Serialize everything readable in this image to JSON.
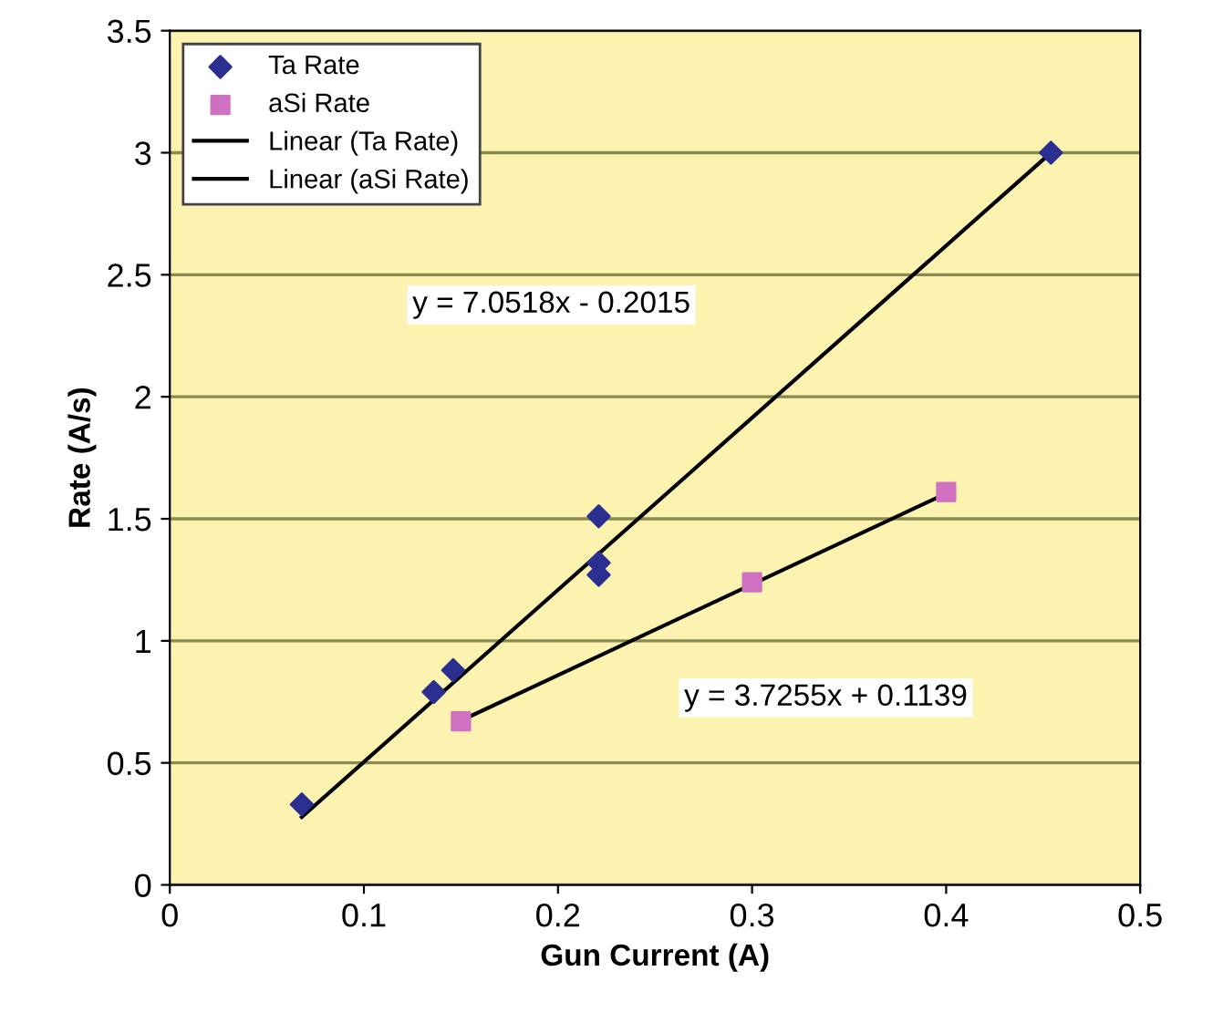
{
  "chart_data": {
    "type": "scatter",
    "xlabel": "Gun Current (A)",
    "ylabel": "Rate (A/s)",
    "xlim": [
      0,
      0.5
    ],
    "xticks": [
      0,
      0.1,
      0.2,
      0.3,
      0.4,
      0.5
    ],
    "ylim": [
      0,
      3.5
    ],
    "yticks": [
      0,
      0.5,
      1,
      1.5,
      2,
      2.5,
      3,
      3.5
    ],
    "grid": "y",
    "legend": "top left",
    "series": [
      {
        "name": "Ta Rate",
        "marker": "diamond",
        "color": "#2b2f8f",
        "x": [
          0.068,
          0.136,
          0.146,
          0.221,
          0.221,
          0.221,
          0.454
        ],
        "values": [
          0.33,
          0.79,
          0.88,
          1.51,
          1.32,
          1.27,
          3.0
        ]
      },
      {
        "name": "aSi Rate",
        "marker": "square",
        "color": "#d070c0",
        "x": [
          0.15,
          0.3,
          0.4
        ],
        "values": [
          0.67,
          1.24,
          1.61
        ]
      },
      {
        "name": "Linear (Ta Rate)",
        "type": "line",
        "marker": "none",
        "color": "#000000",
        "x": [
          0.068,
          0.454
        ],
        "values": [
          0.278,
          3.0
        ]
      },
      {
        "name": "Linear (aSi Rate)",
        "type": "line",
        "marker": "none",
        "color": "#000000",
        "x": [
          0.15,
          0.4
        ],
        "values": [
          0.673,
          1.604
        ]
      }
    ],
    "annotations": [
      "y = 7.0518x - 0.2015",
      "y = 3.7255x + 0.1139"
    ]
  }
}
